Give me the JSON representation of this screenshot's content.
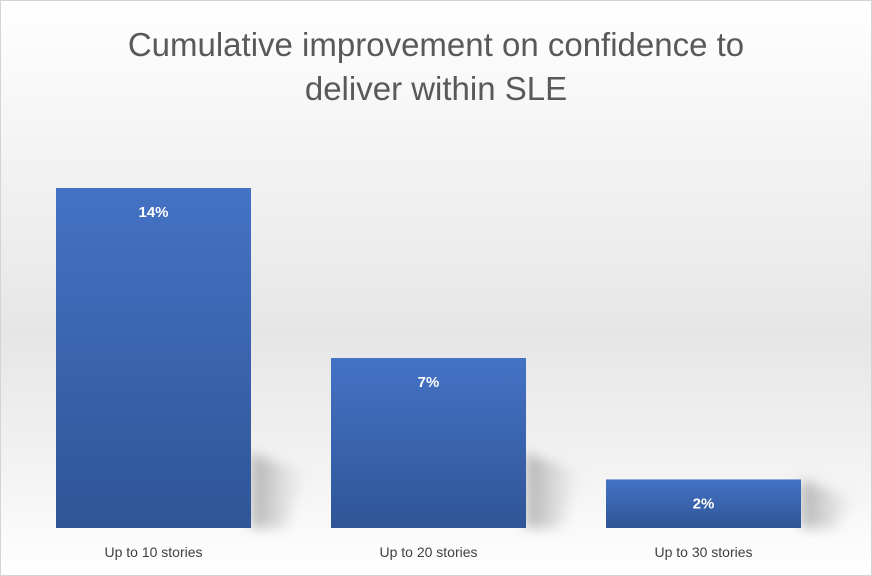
{
  "chart_data": {
    "type": "bar",
    "title": "Cumulative improvement on confidence to deliver within SLE",
    "categories": [
      "Up to 10 stories",
      "Up to 20 stories",
      "Up to 30 stories"
    ],
    "values": [
      14,
      7,
      2
    ],
    "data_labels": [
      "14%",
      "7%",
      "2%"
    ],
    "xlabel": "",
    "ylabel": "",
    "ylim": [
      0,
      14
    ],
    "grid": false,
    "legend": "none",
    "bar_color": "#4472C4",
    "bar_color_dark": "#2F5597",
    "label_color": "#FFFFFF"
  }
}
